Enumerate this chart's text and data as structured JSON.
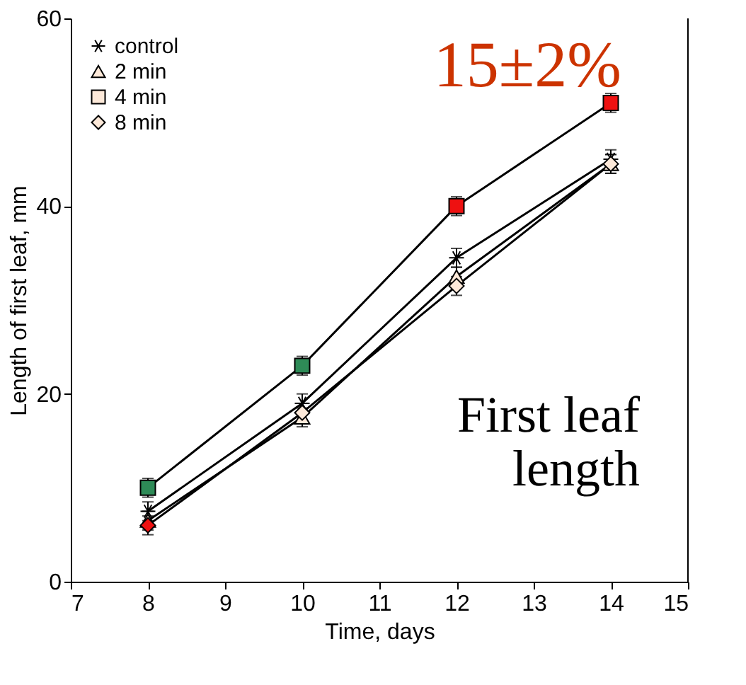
{
  "chart_data": {
    "type": "line",
    "xlabel": "Time, days",
    "ylabel": "Length of first leaf, mm",
    "x": [
      8,
      10,
      12,
      14
    ],
    "series": [
      {
        "name": "control",
        "color": "#000000",
        "marker": "cross",
        "colors": [
          "#000000",
          "#000000",
          "#000000",
          "#000000"
        ],
        "values": [
          7.5,
          19,
          34.5,
          45
        ],
        "errors": [
          1,
          1,
          1,
          1
        ]
      },
      {
        "name": "2 min",
        "color": "#000000",
        "marker": "triangle",
        "colors": [
          "#fde9d9",
          "#fde9d9",
          "#fde9d9",
          "#fde9d9"
        ],
        "values": [
          6.5,
          17.5,
          32.5,
          44.5
        ],
        "errors": [
          1,
          1,
          1,
          1
        ]
      },
      {
        "name": "4 min",
        "color": "#000000",
        "marker": "square",
        "colors": [
          "#2e8b57",
          "#2e8b57",
          "#ee1111",
          "#ee1111"
        ],
        "values": [
          10,
          23,
          40,
          51
        ],
        "errors": [
          1,
          1,
          1,
          1
        ]
      },
      {
        "name": "8 min",
        "color": "#000000",
        "marker": "diamond",
        "colors": [
          "#ee1111",
          "#fde9d9",
          "#fde9d9",
          "#fde9d9"
        ],
        "values": [
          6,
          18,
          31.5,
          44.5
        ],
        "errors": [
          1,
          1,
          1,
          1
        ]
      }
    ],
    "xlim": [
      7,
      15
    ],
    "xticks": [
      7,
      8,
      9,
      10,
      11,
      12,
      13,
      14,
      15
    ],
    "ylim": [
      0,
      60
    ],
    "yticks": [
      0,
      20,
      40,
      60
    ],
    "grid": false,
    "legend": "top left",
    "line_style": "solid",
    "annotations": [
      "15±2%",
      "First leaf\nlength"
    ]
  }
}
